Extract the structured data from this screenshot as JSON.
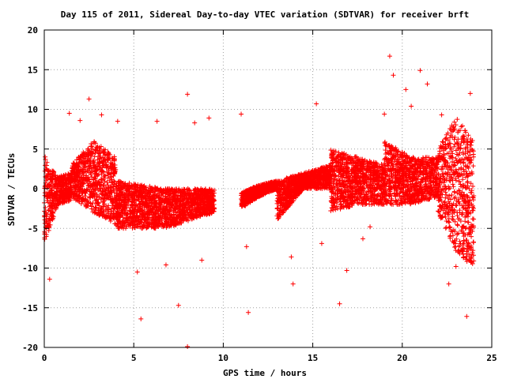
{
  "chart_data": {
    "type": "scatter",
    "title": "Day 115 of 2011, Sidereal Day-to-day VTEC variation (SDTVAR) for receiver brft",
    "xlabel": "GPS time / hours",
    "ylabel": "SDTVAR / TECUs",
    "xlim": [
      0,
      25
    ],
    "ylim": [
      -20,
      20
    ],
    "x_ticks": [
      0,
      5,
      10,
      15,
      20,
      25
    ],
    "y_ticks": [
      -20,
      -15,
      -10,
      -5,
      0,
      5,
      10,
      15,
      20
    ],
    "grid": true,
    "marker": "plus",
    "color": "#ff0000",
    "bands": [
      {
        "x_start": 0.0,
        "x_end": 1.5,
        "y_low": [
          -7,
          -2,
          -1.5
        ],
        "y_high": [
          4,
          1.5,
          2
        ]
      },
      {
        "x_start": 1.5,
        "x_end": 4.0,
        "y_low": [
          -1,
          -3,
          -4.5
        ],
        "y_high": [
          3,
          6,
          4
        ]
      },
      {
        "x_start": 4.0,
        "x_end": 9.5,
        "y_low": [
          -5,
          -5,
          -3
        ],
        "y_high": [
          1,
          0,
          0
        ]
      },
      {
        "x_start": 11.0,
        "x_end": 13.0,
        "y_low": [
          -2.5,
          -1,
          0
        ],
        "y_high": [
          -0.5,
          0.5,
          1
        ]
      },
      {
        "x_start": 13.0,
        "x_end": 16.0,
        "y_low": [
          -4,
          0,
          0
        ],
        "y_high": [
          1,
          2,
          3
        ]
      },
      {
        "x_start": 16.0,
        "x_end": 19.0,
        "y_low": [
          -3,
          -2,
          -2
        ],
        "y_high": [
          5,
          4,
          3
        ]
      },
      {
        "x_start": 19.0,
        "x_end": 22.0,
        "y_low": [
          -2,
          -2,
          -1
        ],
        "y_high": [
          6,
          4,
          4
        ]
      },
      {
        "x_start": 22.0,
        "x_end": 24.0,
        "y_low": [
          -3,
          -8,
          -10
        ],
        "y_high": [
          5,
          9,
          6
        ]
      }
    ],
    "points": [
      [
        0.05,
        4.0
      ],
      [
        0.3,
        -11.4
      ],
      [
        2.5,
        11.3
      ],
      [
        3.2,
        9.3
      ],
      [
        4.1,
        8.5
      ],
      [
        5.2,
        -10.5
      ],
      [
        5.4,
        -16.4
      ],
      [
        6.3,
        8.5
      ],
      [
        7.5,
        -14.7
      ],
      [
        8.0,
        11.9
      ],
      [
        8.0,
        -19.9
      ],
      [
        8.4,
        8.3
      ],
      [
        9.2,
        8.9
      ],
      [
        11.0,
        9.4
      ],
      [
        11.3,
        -7.3
      ],
      [
        11.4,
        -15.6
      ],
      [
        13.8,
        -8.6
      ],
      [
        13.9,
        -12.0
      ],
      [
        15.2,
        10.7
      ],
      [
        15.5,
        -6.9
      ],
      [
        16.5,
        -14.5
      ],
      [
        17.8,
        -6.3
      ],
      [
        19.3,
        16.7
      ],
      [
        19.5,
        14.3
      ],
      [
        20.2,
        12.5
      ],
      [
        21.0,
        14.9
      ],
      [
        21.4,
        13.2
      ],
      [
        22.6,
        -12.0
      ],
      [
        23.6,
        -16.1
      ],
      [
        23.8,
        12.0
      ],
      [
        1.4,
        9.5
      ],
      [
        2.0,
        8.6
      ],
      [
        6.8,
        -9.6
      ],
      [
        8.8,
        -9.0
      ],
      [
        16.9,
        -10.3
      ],
      [
        18.2,
        -4.8
      ],
      [
        19.0,
        9.4
      ],
      [
        20.5,
        10.4
      ],
      [
        22.2,
        9.3
      ],
      [
        23.0,
        -9.8
      ]
    ]
  }
}
